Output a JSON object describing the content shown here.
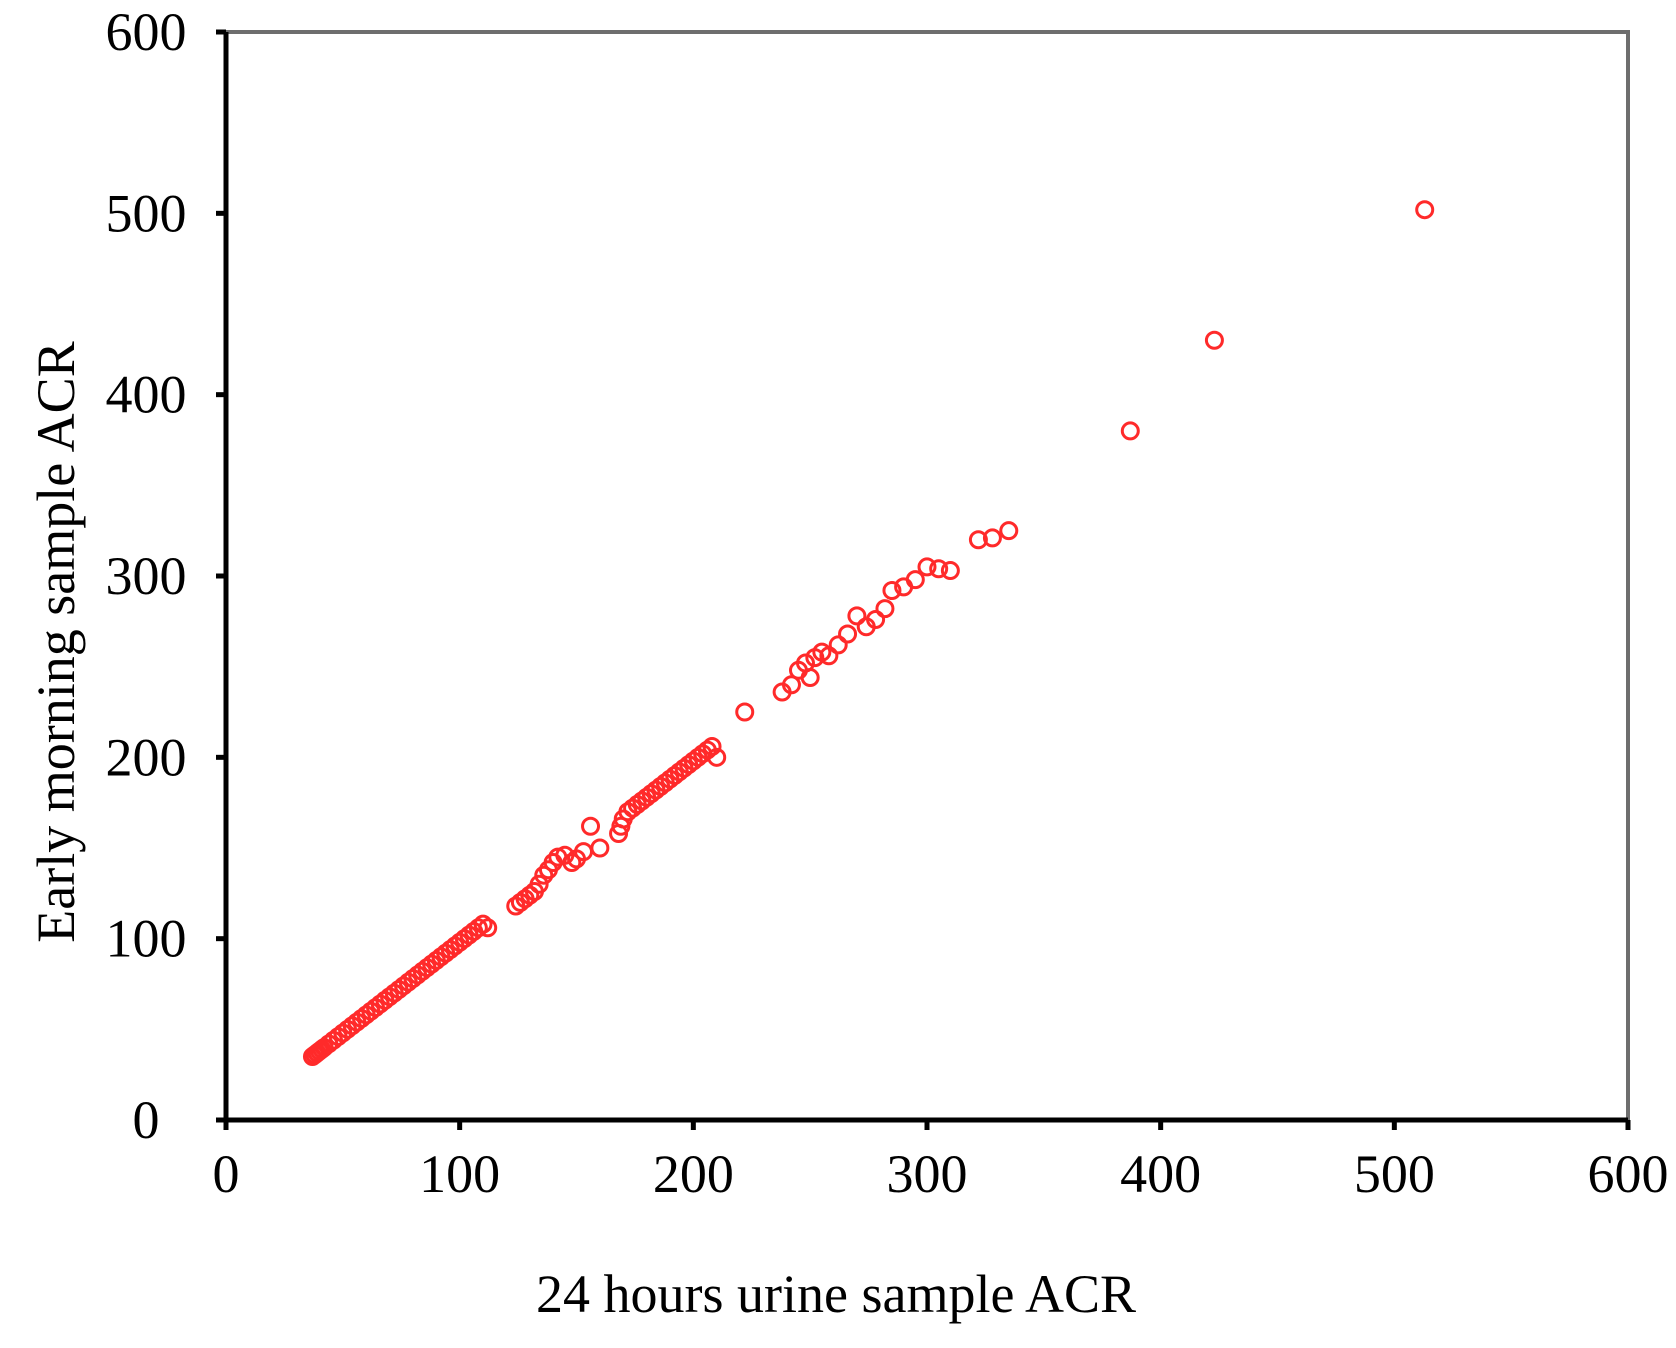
{
  "chart_data": {
    "type": "scatter",
    "title": "",
    "xlabel": "24 hours urine sample ACR",
    "ylabel": "Early morning sample ACR",
    "xlim": [
      0,
      600
    ],
    "ylim": [
      0,
      600
    ],
    "xticks": [
      "0",
      "100",
      "200",
      "300",
      "400",
      "500",
      "600"
    ],
    "yticks": [
      "0",
      "100",
      "200",
      "300",
      "400",
      "500",
      "600"
    ],
    "grid": false,
    "legend": "none",
    "marker": "open-circle",
    "colors": {
      "marker": "#ff2a2a",
      "axis": "#000000",
      "frame": "#6e6e6e"
    },
    "series": [
      {
        "x": [
          37,
          38,
          39,
          40,
          41,
          42,
          44,
          46,
          48,
          50,
          52,
          54,
          56,
          58,
          60,
          62,
          64,
          66,
          68,
          70,
          72,
          74,
          76,
          78,
          80,
          82,
          84,
          86,
          88,
          90,
          92,
          94,
          96,
          98,
          100,
          102,
          104,
          106,
          108,
          110,
          112,
          124,
          126,
          128,
          130,
          132,
          134,
          136,
          138,
          140,
          142,
          145,
          148,
          150,
          153,
          156,
          160,
          168,
          169,
          170,
          172,
          174,
          176,
          178,
          180,
          182,
          184,
          186,
          188,
          190,
          192,
          194,
          196,
          198,
          200,
          202,
          204,
          206,
          208,
          210,
          222,
          238,
          242,
          245,
          248,
          250,
          252,
          255,
          258,
          262,
          266,
          270,
          274,
          278,
          282,
          285,
          290,
          295,
          300,
          305,
          310,
          322,
          328,
          335,
          387,
          423,
          513
        ],
        "y": [
          35,
          36,
          37,
          38,
          39,
          40,
          42,
          44,
          46,
          48,
          50,
          52,
          54,
          56,
          58,
          60,
          62,
          64,
          66,
          68,
          70,
          72,
          74,
          76,
          78,
          80,
          82,
          84,
          86,
          88,
          90,
          92,
          94,
          96,
          98,
          100,
          102,
          104,
          106,
          108,
          106,
          118,
          120,
          122,
          124,
          126,
          130,
          135,
          138,
          142,
          145,
          146,
          142,
          144,
          148,
          162,
          150,
          158,
          162,
          166,
          170,
          172,
          174,
          176,
          178,
          180,
          182,
          184,
          186,
          188,
          190,
          192,
          194,
          196,
          198,
          200,
          202,
          204,
          206,
          200,
          225,
          236,
          240,
          248,
          252,
          244,
          255,
          258,
          256,
          262,
          268,
          278,
          272,
          276,
          282,
          292,
          294,
          298,
          305,
          304,
          303,
          320,
          321,
          325,
          380,
          430,
          502
        ]
      }
    ]
  }
}
